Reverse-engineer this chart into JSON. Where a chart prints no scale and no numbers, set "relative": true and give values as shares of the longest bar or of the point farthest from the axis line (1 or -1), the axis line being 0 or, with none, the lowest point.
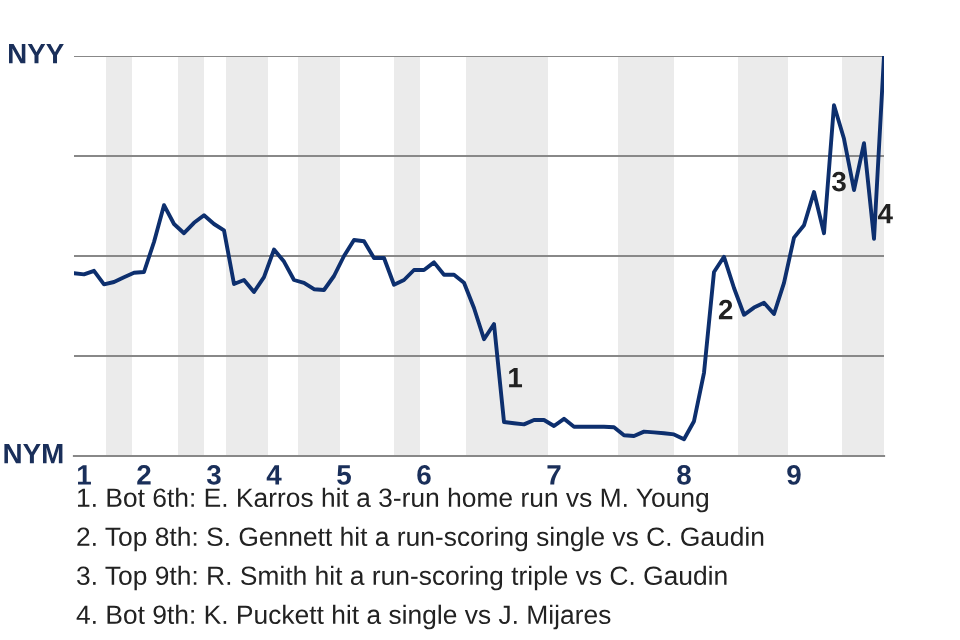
{
  "chart_data": {
    "type": "line",
    "relative": true,
    "categories": [
      null,
      "1",
      null,
      null,
      null,
      null,
      null,
      "2",
      null,
      null,
      null,
      null,
      null,
      null,
      "3",
      null,
      null,
      null,
      null,
      null,
      "4",
      null,
      null,
      null,
      null,
      null,
      null,
      "5",
      null,
      null,
      null,
      null,
      null,
      null,
      null,
      "6",
      null,
      null,
      null,
      null,
      null,
      null,
      null,
      null,
      null,
      null,
      null,
      null,
      "7",
      null,
      null,
      null,
      null,
      null,
      null,
      null,
      null,
      null,
      null,
      null,
      null,
      "8",
      null,
      null,
      null,
      null,
      null,
      null,
      null,
      null,
      null,
      null,
      "9",
      null,
      null,
      null,
      null,
      null,
      null,
      null,
      null,
      null
    ],
    "series": [
      {
        "color": "#0d2f6e",
        "values": [
          0.457,
          0.454,
          0.463,
          0.429,
          0.435,
          0.447,
          0.458,
          0.46,
          0.535,
          0.627,
          0.58,
          0.557,
          0.583,
          0.602,
          0.58,
          0.564,
          0.43,
          0.44,
          0.41,
          0.447,
          0.516,
          0.486,
          0.44,
          0.433,
          0.417,
          0.415,
          0.45,
          0.5,
          0.54,
          0.537,
          0.495,
          0.495,
          0.428,
          0.44,
          0.465,
          0.465,
          0.484,
          0.453,
          0.453,
          0.433,
          0.37,
          0.292,
          0.33,
          0.085,
          0.082,
          0.079,
          0.09,
          0.09,
          0.075,
          0.093,
          0.073,
          0.073,
          0.073,
          0.073,
          0.072,
          0.052,
          0.05,
          0.061,
          0.059,
          0.057,
          0.054,
          0.042,
          0.087,
          0.208,
          0.46,
          0.498,
          0.42,
          0.353,
          0.371,
          0.383,
          0.355,
          0.433,
          0.546,
          0.577,
          0.66,
          0.557,
          0.877,
          0.793,
          0.665,
          0.782,
          0.543,
          1.0
        ]
      }
    ],
    "annotations": [
      "NYY",
      "NYM",
      "1",
      "2",
      "3",
      "4",
      "1. Bot 6th: E. Karros hit a 3-run home run vs M. Young",
      "2. Top 8th: S. Gennett hit a run-scoring single vs C. Gaudin",
      "3. Top 9th: R. Smith hit a run-scoring triple vs C. Gaudin",
      "4. Bot 9th: K. Puckett hit a single vs J. Mijares"
    ]
  }
}
